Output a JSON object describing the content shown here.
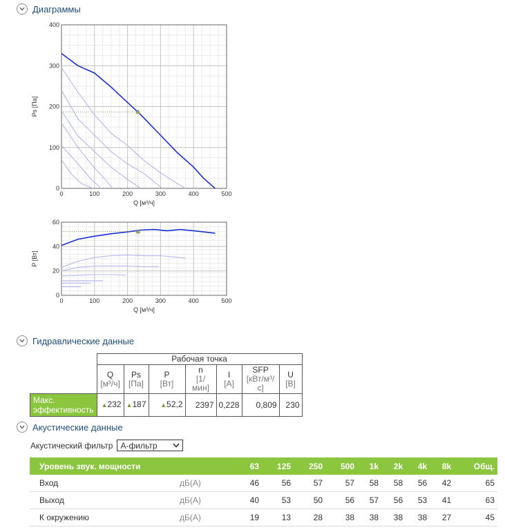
{
  "diagrams": {
    "title": "Диаграммы"
  },
  "chart_data": [
    {
      "type": "line",
      "xlabel": "Q [м³/ч]",
      "ylabel": "Ps [Па]",
      "xlim": [
        0,
        500
      ],
      "ylim": [
        0,
        400
      ],
      "x_ticks": [
        "0",
        "100",
        "200",
        "300",
        "400",
        "500"
      ],
      "y_ticks": [
        "0",
        "100",
        "200",
        "300",
        "400"
      ],
      "grid": true,
      "series": [
        {
          "points": [
            [
              0,
              330
            ],
            [
              50,
              300
            ],
            [
              100,
              282
            ],
            [
              150,
              248
            ],
            [
              200,
              210
            ],
            [
              240,
              180
            ],
            [
              300,
              130
            ],
            [
              350,
              88
            ],
            [
              400,
              52
            ],
            [
              430,
              25
            ],
            [
              465,
              0
            ]
          ],
          "color": "#1a2ed6"
        },
        {
          "points": [
            [
              0,
              295
            ],
            [
              50,
              235
            ],
            [
              100,
              180
            ],
            [
              150,
              135
            ],
            [
              200,
              105
            ],
            [
              250,
              68
            ],
            [
              300,
              38
            ],
            [
              350,
              12
            ],
            [
              375,
              0
            ]
          ],
          "color": "#b3b8ec"
        },
        {
          "points": [
            [
              0,
              240
            ],
            [
              50,
              170
            ],
            [
              100,
              130
            ],
            [
              150,
              90
            ],
            [
              200,
              60
            ],
            [
              250,
              36
            ],
            [
              290,
              10
            ],
            [
              305,
              0
            ]
          ],
          "color": "#b3b8ec"
        },
        {
          "points": [
            [
              0,
              190
            ],
            [
              50,
              128
            ],
            [
              100,
              90
            ],
            [
              150,
              52
            ],
            [
              200,
              22
            ],
            [
              240,
              0
            ]
          ],
          "color": "#b3b8ec"
        },
        {
          "points": [
            [
              0,
              160
            ],
            [
              50,
              100
            ],
            [
              100,
              50
            ],
            [
              130,
              24
            ],
            [
              155,
              0
            ]
          ],
          "color": "#b3b8ec"
        },
        {
          "points": [
            [
              0,
              105
            ],
            [
              50,
              60
            ],
            [
              90,
              22
            ],
            [
              120,
              0
            ]
          ],
          "color": "#b3b8ec"
        },
        {
          "points": [
            [
              0,
              70
            ],
            [
              30,
              35
            ],
            [
              60,
              12
            ],
            [
              95,
              0
            ]
          ],
          "color": "#b3b8ec"
        }
      ],
      "operating_point": {
        "x": 232,
        "y": 187
      }
    },
    {
      "type": "line",
      "xlabel": "Q [м³/ч]",
      "ylabel": "P [Вт]",
      "xlim": [
        0,
        500
      ],
      "ylim": [
        0,
        60
      ],
      "x_ticks": [
        "0",
        "100",
        "200",
        "300",
        "400",
        "500"
      ],
      "y_ticks": [
        "0",
        "20",
        "40",
        "60"
      ],
      "grid": true,
      "series": [
        {
          "points": [
            [
              0,
              41
            ],
            [
              50,
              46
            ],
            [
              100,
              48.5
            ],
            [
              150,
              50.5
            ],
            [
              200,
              52
            ],
            [
              240,
              53.5
            ],
            [
              280,
              54
            ],
            [
              320,
              53
            ],
            [
              360,
              54
            ],
            [
              400,
              53
            ],
            [
              465,
              51
            ]
          ],
          "color": "#1a2ed6"
        },
        {
          "points": [
            [
              0,
              23
            ],
            [
              50,
              28
            ],
            [
              100,
              31
            ],
            [
              150,
              32.5
            ],
            [
              200,
              33
            ],
            [
              250,
              32.5
            ],
            [
              300,
              32.5
            ],
            [
              375,
              30.5
            ]
          ],
          "color": "#b3b8ec"
        },
        {
          "points": [
            [
              0,
              20
            ],
            [
              50,
              23
            ],
            [
              100,
              24
            ],
            [
              150,
              24
            ],
            [
              200,
              24
            ],
            [
              250,
              23.5
            ],
            [
              295,
              23.5
            ]
          ],
          "color": "#b3b8ec"
        },
        {
          "points": [
            [
              0,
              16
            ],
            [
              50,
              16.5
            ],
            [
              100,
              17
            ],
            [
              150,
              17
            ],
            [
              195,
              16.5
            ]
          ],
          "color": "#b3b8ec"
        },
        {
          "points": [
            [
              0,
              12
            ],
            [
              50,
              12
            ],
            [
              100,
              12
            ],
            [
              125,
              12
            ]
          ],
          "color": "#b3b8ec"
        },
        {
          "points": [
            [
              0,
              10
            ],
            [
              30,
              10
            ],
            [
              60,
              10
            ],
            [
              90,
              10
            ]
          ],
          "color": "#b3b8ec"
        },
        {
          "points": [
            [
              0,
              7
            ],
            [
              30,
              7
            ],
            [
              60,
              7
            ]
          ],
          "color": "#b3b8ec"
        }
      ],
      "operating_point": {
        "x": 232,
        "y": 52.2
      }
    }
  ],
  "hydraulic": {
    "title": "Гидравлические данные",
    "group_header": "Рабочая точка",
    "columns": [
      {
        "name": "Q",
        "unit": "[м³/ч]"
      },
      {
        "name": "Ps",
        "unit": "[Па]"
      },
      {
        "name": "P",
        "unit": "[Вт]"
      },
      {
        "name": "n",
        "unit": "[1/мин]"
      },
      {
        "name": "I",
        "unit": "[A]"
      },
      {
        "name": "SFP",
        "unit": "[кВт/м³/с]"
      },
      {
        "name": "U",
        "unit": "[В]"
      }
    ],
    "row_label_line1": "Макс.",
    "row_label_line2": "эффективность",
    "row_values": [
      "232",
      "187",
      "52,2",
      "2397",
      "0,228",
      "0,809",
      "230"
    ],
    "triangle_marker": "▲"
  },
  "acoustic": {
    "title": "Акустические данные",
    "filter_label": "Акустический фильтр",
    "filter_value": "А-фильтр",
    "header_label": "Уровень звук. мощности",
    "bands": [
      "63",
      "125",
      "250",
      "500",
      "1k",
      "2k",
      "4k",
      "8k",
      "Общ."
    ],
    "rows": [
      {
        "label": "Вход",
        "unit": "дБ(А)",
        "values": [
          "46",
          "56",
          "57",
          "57",
          "58",
          "58",
          "56",
          "42",
          "65"
        ]
      },
      {
        "label": "Выход",
        "unit": "дБ(А)",
        "values": [
          "40",
          "53",
          "50",
          "56",
          "57",
          "56",
          "53",
          "41",
          "63"
        ]
      },
      {
        "label": "К окружению",
        "unit": "дБ(А)",
        "values": [
          "19",
          "13",
          "28",
          "38",
          "38",
          "38",
          "38",
          "27",
          "45"
        ]
      }
    ]
  },
  "colors": {
    "accent_green": "#8cc63f",
    "main_curve": "#1a2ed6",
    "secondary_curve": "#b3b8ec",
    "marker": "#8fa05a",
    "title_blue": "#1f4e79"
  }
}
